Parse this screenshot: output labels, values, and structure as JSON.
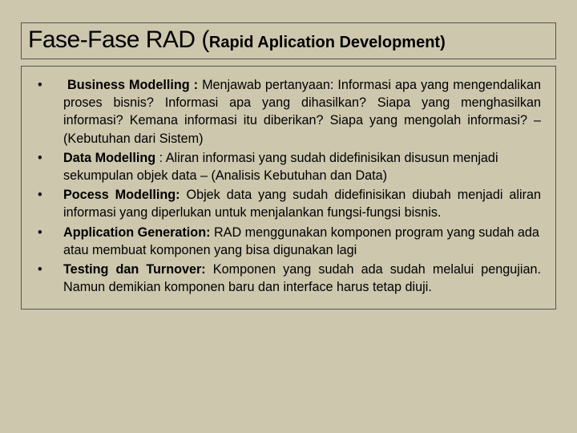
{
  "colors": {
    "background": "#cdc7ae",
    "border": "#555555",
    "text": "#000000"
  },
  "title": {
    "main": "Fase-Fase RAD (",
    "sub": "Rapid Aplication Development)"
  },
  "items": [
    {
      "label": "Business Modelling : ",
      "text": "Menjawab pertanyaan: Informasi apa yang mengendalikan proses bisnis? Informasi apa yang dihasilkan? Siapa yang menghasilkan informasi? Kemana informasi itu diberikan? Siapa yang mengolah informasi? – (Kebutuhan dari Sistem)",
      "justify": true
    },
    {
      "label": "Data Modelling",
      "text": " : Aliran informasi yang sudah didefinisikan disusun menjadi sekumpulan objek data – (Analisis Kebutuhan dan Data)",
      "justify": false
    },
    {
      "label": "Pocess Modelling:",
      "text": "  Objek data yang sudah didefinisikan diubah menjadi aliran informasi yang diperlukan untuk menjalankan fungsi-fungsi bisnis.",
      "justify": true
    },
    {
      "label": "Application Generation:",
      "text": " RAD menggunakan komponen program yang sudah ada atau membuat komponen yang bisa digunakan lagi",
      "justify": false
    },
    {
      "label": "Testing dan Turnover:",
      "text": " Komponen yang sudah ada sudah melalui pengujian. Namun demikian komponen baru dan interface harus tetap diuji.",
      "justify": true
    }
  ]
}
